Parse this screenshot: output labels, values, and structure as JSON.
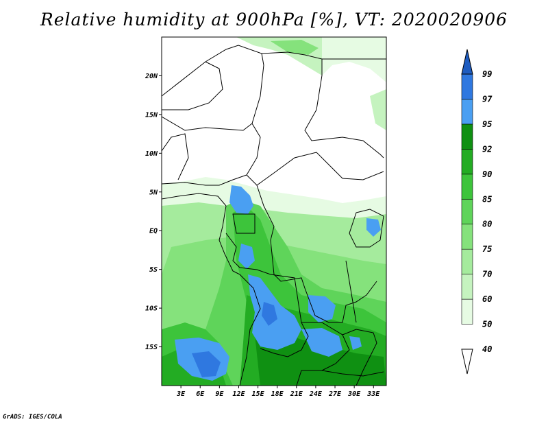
{
  "title": "Relative humidity at 900hPa [%], VT: 2020020906",
  "credit": "GrADS: IGES/COLA",
  "map": {
    "lon_range": [
      0,
      35
    ],
    "lat_range": [
      -20,
      25
    ],
    "lat_ticks": [
      {
        "value": 20,
        "label": "20N"
      },
      {
        "value": 15,
        "label": "15N"
      },
      {
        "value": 10,
        "label": "10N"
      },
      {
        "value": 5,
        "label": "5N"
      },
      {
        "value": 0,
        "label": "EQ"
      },
      {
        "value": -5,
        "label": "5S"
      },
      {
        "value": -10,
        "label": "10S"
      },
      {
        "value": -15,
        "label": "15S"
      }
    ],
    "lon_ticks": [
      {
        "value": 3,
        "label": "3E"
      },
      {
        "value": 6,
        "label": "6E"
      },
      {
        "value": 9,
        "label": "9E"
      },
      {
        "value": 12,
        "label": "12E"
      },
      {
        "value": 15,
        "label": "15E"
      },
      {
        "value": 18,
        "label": "18E"
      },
      {
        "value": 21,
        "label": "21E"
      },
      {
        "value": 24,
        "label": "24E"
      },
      {
        "value": 27,
        "label": "27E"
      },
      {
        "value": 30,
        "label": "30E"
      },
      {
        "value": 33,
        "label": "33E"
      }
    ]
  },
  "colorbar": {
    "levels": [
      {
        "label": "40",
        "color": "#ffffff"
      },
      {
        "label": "50",
        "color": "#e6fbe3"
      },
      {
        "label": "60",
        "color": "#c5f3bf"
      },
      {
        "label": "70",
        "color": "#a5eb9d"
      },
      {
        "label": "75",
        "color": "#85e27c"
      },
      {
        "label": "80",
        "color": "#5fd45a"
      },
      {
        "label": "85",
        "color": "#3dc43b"
      },
      {
        "label": "90",
        "color": "#23ac23"
      },
      {
        "label": "92",
        "color": "#0f9012"
      },
      {
        "label": "95",
        "color": "#4a9ff2"
      },
      {
        "label": "97",
        "color": "#2f78e0"
      },
      {
        "label": "99",
        "color": "#1e5cc0"
      }
    ]
  }
}
